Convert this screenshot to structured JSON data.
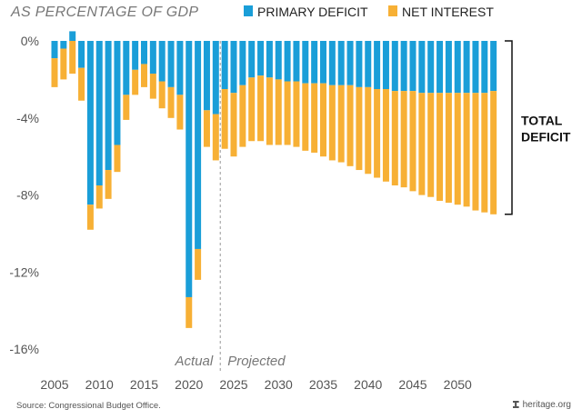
{
  "chart_data": {
    "type": "bar",
    "stacked": true,
    "ylabel": "AS PERCENTAGE OF GDP",
    "ylim": [
      -17,
      0.3
    ],
    "yticks": [
      {
        "value": 0,
        "label": "0%"
      },
      {
        "value": -4,
        "label": "-4%"
      },
      {
        "value": -8,
        "label": "-8%"
      },
      {
        "value": -12,
        "label": "-12%"
      },
      {
        "value": -16,
        "label": "-16%"
      }
    ],
    "xticks": [
      {
        "value": 2005,
        "label": "2005"
      },
      {
        "value": 2010,
        "label": "2010"
      },
      {
        "value": 2015,
        "label": "2015"
      },
      {
        "value": 2020,
        "label": "2020"
      },
      {
        "value": 2025,
        "label": "2025"
      },
      {
        "value": 2030,
        "label": "2030"
      },
      {
        "value": 2035,
        "label": "2035"
      },
      {
        "value": 2040,
        "label": "2040"
      },
      {
        "value": 2045,
        "label": "2045"
      },
      {
        "value": 2050,
        "label": "2050"
      }
    ],
    "grid": false,
    "legend_position": "top",
    "x": [
      2005,
      2006,
      2007,
      2008,
      2009,
      2010,
      2011,
      2012,
      2013,
      2014,
      2015,
      2016,
      2017,
      2018,
      2019,
      2020,
      2021,
      2022,
      2023,
      2024,
      2025,
      2026,
      2027,
      2028,
      2029,
      2030,
      2031,
      2032,
      2033,
      2034,
      2035,
      2036,
      2037,
      2038,
      2039,
      2040,
      2041,
      2042,
      2043,
      2044,
      2045,
      2046,
      2047,
      2048,
      2049,
      2050,
      2051,
      2052,
      2053,
      2054
    ],
    "series": [
      {
        "name": "PRIMARY DEFICIT",
        "color": "#1a9ed8",
        "values": [
          -0.9,
          -0.4,
          0.5,
          -1.4,
          -8.5,
          -7.5,
          -6.7,
          -5.4,
          -2.8,
          -1.5,
          -1.2,
          -1.7,
          -2.1,
          -2.4,
          -2.8,
          -13.3,
          -10.8,
          -3.6,
          -3.8,
          -2.5,
          -2.7,
          -2.3,
          -1.9,
          -1.8,
          -1.9,
          -2.0,
          -2.1,
          -2.1,
          -2.2,
          -2.2,
          -2.2,
          -2.3,
          -2.3,
          -2.3,
          -2.4,
          -2.4,
          -2.5,
          -2.5,
          -2.6,
          -2.6,
          -2.6,
          -2.7,
          -2.7,
          -2.7,
          -2.7,
          -2.7,
          -2.7,
          -2.7,
          -2.7,
          -2.6
        ]
      },
      {
        "name": "NET INTEREST",
        "color": "#f7b035",
        "values": [
          -1.5,
          -1.6,
          -1.7,
          -1.7,
          -1.3,
          -1.2,
          -1.5,
          -1.4,
          -1.3,
          -1.3,
          -1.2,
          -1.3,
          -1.4,
          -1.6,
          -1.8,
          -1.6,
          -1.6,
          -1.9,
          -2.4,
          -3.1,
          -3.3,
          -3.2,
          -3.3,
          -3.4,
          -3.5,
          -3.4,
          -3.3,
          -3.4,
          -3.5,
          -3.6,
          -3.8,
          -3.9,
          -4.0,
          -4.2,
          -4.3,
          -4.5,
          -4.6,
          -4.8,
          -4.9,
          -5.0,
          -5.2,
          -5.3,
          -5.4,
          -5.6,
          -5.7,
          -5.8,
          -5.9,
          -6.1,
          -6.2,
          -6.4
        ]
      }
    ],
    "divider_year": 2023.5,
    "period_labels": {
      "actual": "Actual",
      "projected": "Projected"
    },
    "annotation": {
      "line1": "TOTAL",
      "line2": "DEFICIT",
      "from_year": 2025,
      "to_year": 2054
    },
    "colors": {
      "axis_text": "#555555",
      "divider": "#999999",
      "bracket": "#111111"
    }
  },
  "footer": {
    "source": "Source: Congressional Budget Office.",
    "credit": "heritage.org"
  }
}
